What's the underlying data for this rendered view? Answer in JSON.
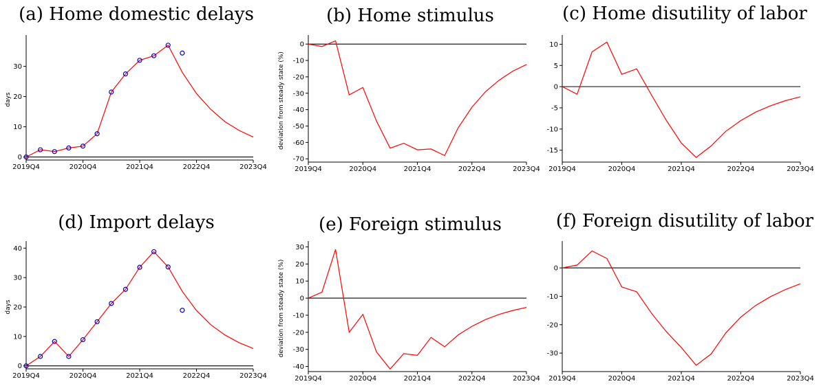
{
  "chart_data": [
    {
      "id": "a",
      "type": "line",
      "title": "(a) Home domestic delays",
      "ylabel": "days",
      "xticks": [
        "2019Q4",
        "2020Q4",
        "2021Q4",
        "2022Q4",
        "2023Q4"
      ],
      "yticks": [
        0,
        10,
        20,
        30
      ],
      "ylim": [
        -1,
        39
      ],
      "x": [
        "2019Q4",
        "2020Q1",
        "2020Q2",
        "2020Q3",
        "2020Q4",
        "2021Q1",
        "2021Q2",
        "2021Q3",
        "2021Q4",
        "2022Q1",
        "2022Q2",
        "2022Q3",
        "2022Q4",
        "2023Q1",
        "2023Q2",
        "2023Q3",
        "2023Q4"
      ],
      "series": [
        {
          "role": "model",
          "style": "line",
          "color": "#ff0000",
          "values": [
            0,
            2.4,
            1.8,
            3.0,
            3.6,
            7.7,
            21.5,
            27.5,
            32.0,
            33.5,
            37.0,
            28.0,
            21.0,
            15.8,
            11.7,
            8.8,
            6.6
          ]
        },
        {
          "role": "data",
          "style": "markers",
          "color": "#0000cc",
          "values": [
            0,
            2.4,
            1.8,
            3.0,
            3.6,
            7.7,
            21.5,
            27.5,
            32.0,
            33.5,
            37.0,
            34.4,
            null,
            null,
            null,
            null,
            null
          ]
        }
      ],
      "zero_line": true
    },
    {
      "id": "b",
      "type": "line",
      "title": "(b) Home stimulus",
      "ylabel": "deviation from steady state (%)",
      "xticks": [
        "2019Q4",
        "2020Q4",
        "2021Q4",
        "2022Q4",
        "2023Q4"
      ],
      "yticks": [
        0,
        -10,
        -20,
        -30,
        -40,
        -50,
        -60,
        -70
      ],
      "ylim": [
        -72,
        3
      ],
      "x": [
        "2019Q4",
        "2020Q1",
        "2020Q2",
        "2020Q3",
        "2020Q4",
        "2021Q1",
        "2021Q2",
        "2021Q3",
        "2021Q4",
        "2022Q1",
        "2022Q2",
        "2022Q3",
        "2022Q4",
        "2023Q1",
        "2023Q2",
        "2023Q3",
        "2023Q4"
      ],
      "series": [
        {
          "role": "model",
          "style": "line",
          "color": "#ff0000",
          "values": [
            0,
            -1.5,
            2,
            -31,
            -26.5,
            -47,
            -63.5,
            -60.5,
            -64.5,
            -64,
            -68,
            -51,
            -38.5,
            -29,
            -22,
            -16.5,
            -12.5
          ]
        }
      ],
      "zero_line": true
    },
    {
      "id": "c",
      "type": "line",
      "title": "(c) Home disutility of labor",
      "ylabel": "",
      "xticks": [
        "2019Q4",
        "2020Q4",
        "2021Q4",
        "2022Q4",
        "2023Q4"
      ],
      "yticks": [
        10,
        5,
        0,
        -5,
        -10,
        -15
      ],
      "ylim": [
        -17.8,
        11.2
      ],
      "x": [
        "2019Q4",
        "2020Q1",
        "2020Q2",
        "2020Q3",
        "2020Q4",
        "2021Q1",
        "2021Q2",
        "2021Q3",
        "2021Q4",
        "2022Q1",
        "2022Q2",
        "2022Q3",
        "2022Q4",
        "2023Q1",
        "2023Q2",
        "2023Q3",
        "2023Q4"
      ],
      "series": [
        {
          "role": "model",
          "style": "line",
          "color": "#ff0000",
          "values": [
            0,
            -1.8,
            8.2,
            10.5,
            2.9,
            4.2,
            -2.0,
            -8.0,
            -13.3,
            -16.7,
            -14.0,
            -10.5,
            -8.0,
            -6.0,
            -4.5,
            -3.3,
            -2.4
          ]
        }
      ],
      "zero_line": true
    },
    {
      "id": "d",
      "type": "line",
      "title": "(d) Import delays",
      "ylabel": "days",
      "xticks": [
        "2019Q4",
        "2020Q4",
        "2021Q4",
        "2022Q4",
        "2023Q4"
      ],
      "yticks": [
        0,
        10,
        20,
        30,
        40
      ],
      "ylim": [
        -1,
        41
      ],
      "x": [
        "2019Q4",
        "2020Q1",
        "2020Q2",
        "2020Q3",
        "2020Q4",
        "2021Q1",
        "2021Q2",
        "2021Q3",
        "2021Q4",
        "2022Q1",
        "2022Q2",
        "2022Q3",
        "2022Q4",
        "2023Q1",
        "2023Q2",
        "2023Q3",
        "2023Q4"
      ],
      "series": [
        {
          "role": "model",
          "style": "line",
          "color": "#ff0000",
          "values": [
            0,
            3.2,
            8.3,
            3.2,
            8.9,
            15.0,
            21.2,
            26.0,
            33.5,
            38.8,
            33.6,
            25.3,
            18.8,
            14.0,
            10.5,
            7.9,
            5.9
          ]
        },
        {
          "role": "data",
          "style": "markers",
          "color": "#0000cc",
          "values": [
            0,
            3.2,
            8.3,
            3.2,
            8.9,
            15.0,
            21.2,
            26.0,
            33.5,
            38.8,
            33.6,
            18.9,
            null,
            null,
            null,
            null,
            null
          ]
        }
      ],
      "zero_line": true
    },
    {
      "id": "e",
      "type": "line",
      "title": "(e) Foreign stimulus",
      "ylabel": "deviation from steady state (%)",
      "xticks": [
        "2019Q4",
        "2020Q4",
        "2021Q4",
        "2022Q4",
        "2023Q4"
      ],
      "yticks": [
        30,
        20,
        10,
        0,
        -10,
        -20,
        -30,
        -40
      ],
      "ylim": [
        -43,
        31
      ],
      "x": [
        "2019Q4",
        "2020Q1",
        "2020Q2",
        "2020Q3",
        "2020Q4",
        "2021Q1",
        "2021Q2",
        "2021Q3",
        "2021Q4",
        "2022Q1",
        "2022Q2",
        "2022Q3",
        "2022Q4",
        "2023Q1",
        "2023Q2",
        "2023Q3",
        "2023Q4"
      ],
      "series": [
        {
          "role": "model",
          "style": "line",
          "color": "#ff0000",
          "values": [
            0,
            3.5,
            28.5,
            -20,
            -9.5,
            -31.5,
            -41.5,
            -32.5,
            -33.5,
            -23,
            -28.5,
            -21.5,
            -16.5,
            -12.5,
            -9.5,
            -7.2,
            -5.4
          ]
        }
      ],
      "zero_line": true
    },
    {
      "id": "f",
      "type": "line",
      "title": "(f) Foreign disutility of labor",
      "ylabel": "",
      "xticks": [
        "2019Q4",
        "2020Q4",
        "2021Q4",
        "2022Q4",
        "2023Q4"
      ],
      "yticks": [
        0,
        -10,
        -20,
        -30
      ],
      "ylim": [
        -36.5,
        8
      ],
      "x": [
        "2019Q4",
        "2020Q1",
        "2020Q2",
        "2020Q3",
        "2020Q4",
        "2021Q1",
        "2021Q2",
        "2021Q3",
        "2021Q4",
        "2022Q1",
        "2022Q2",
        "2022Q3",
        "2022Q4",
        "2023Q1",
        "2023Q2",
        "2023Q3",
        "2023Q4"
      ],
      "series": [
        {
          "role": "model",
          "style": "line",
          "color": "#ff0000",
          "values": [
            0,
            1,
            6,
            3.3,
            -6.7,
            -8.4,
            -16,
            -22.5,
            -28,
            -34.3,
            -30.3,
            -22.8,
            -17.3,
            -13.2,
            -10.1,
            -7.6,
            -5.6
          ]
        }
      ],
      "zero_line": true
    }
  ]
}
